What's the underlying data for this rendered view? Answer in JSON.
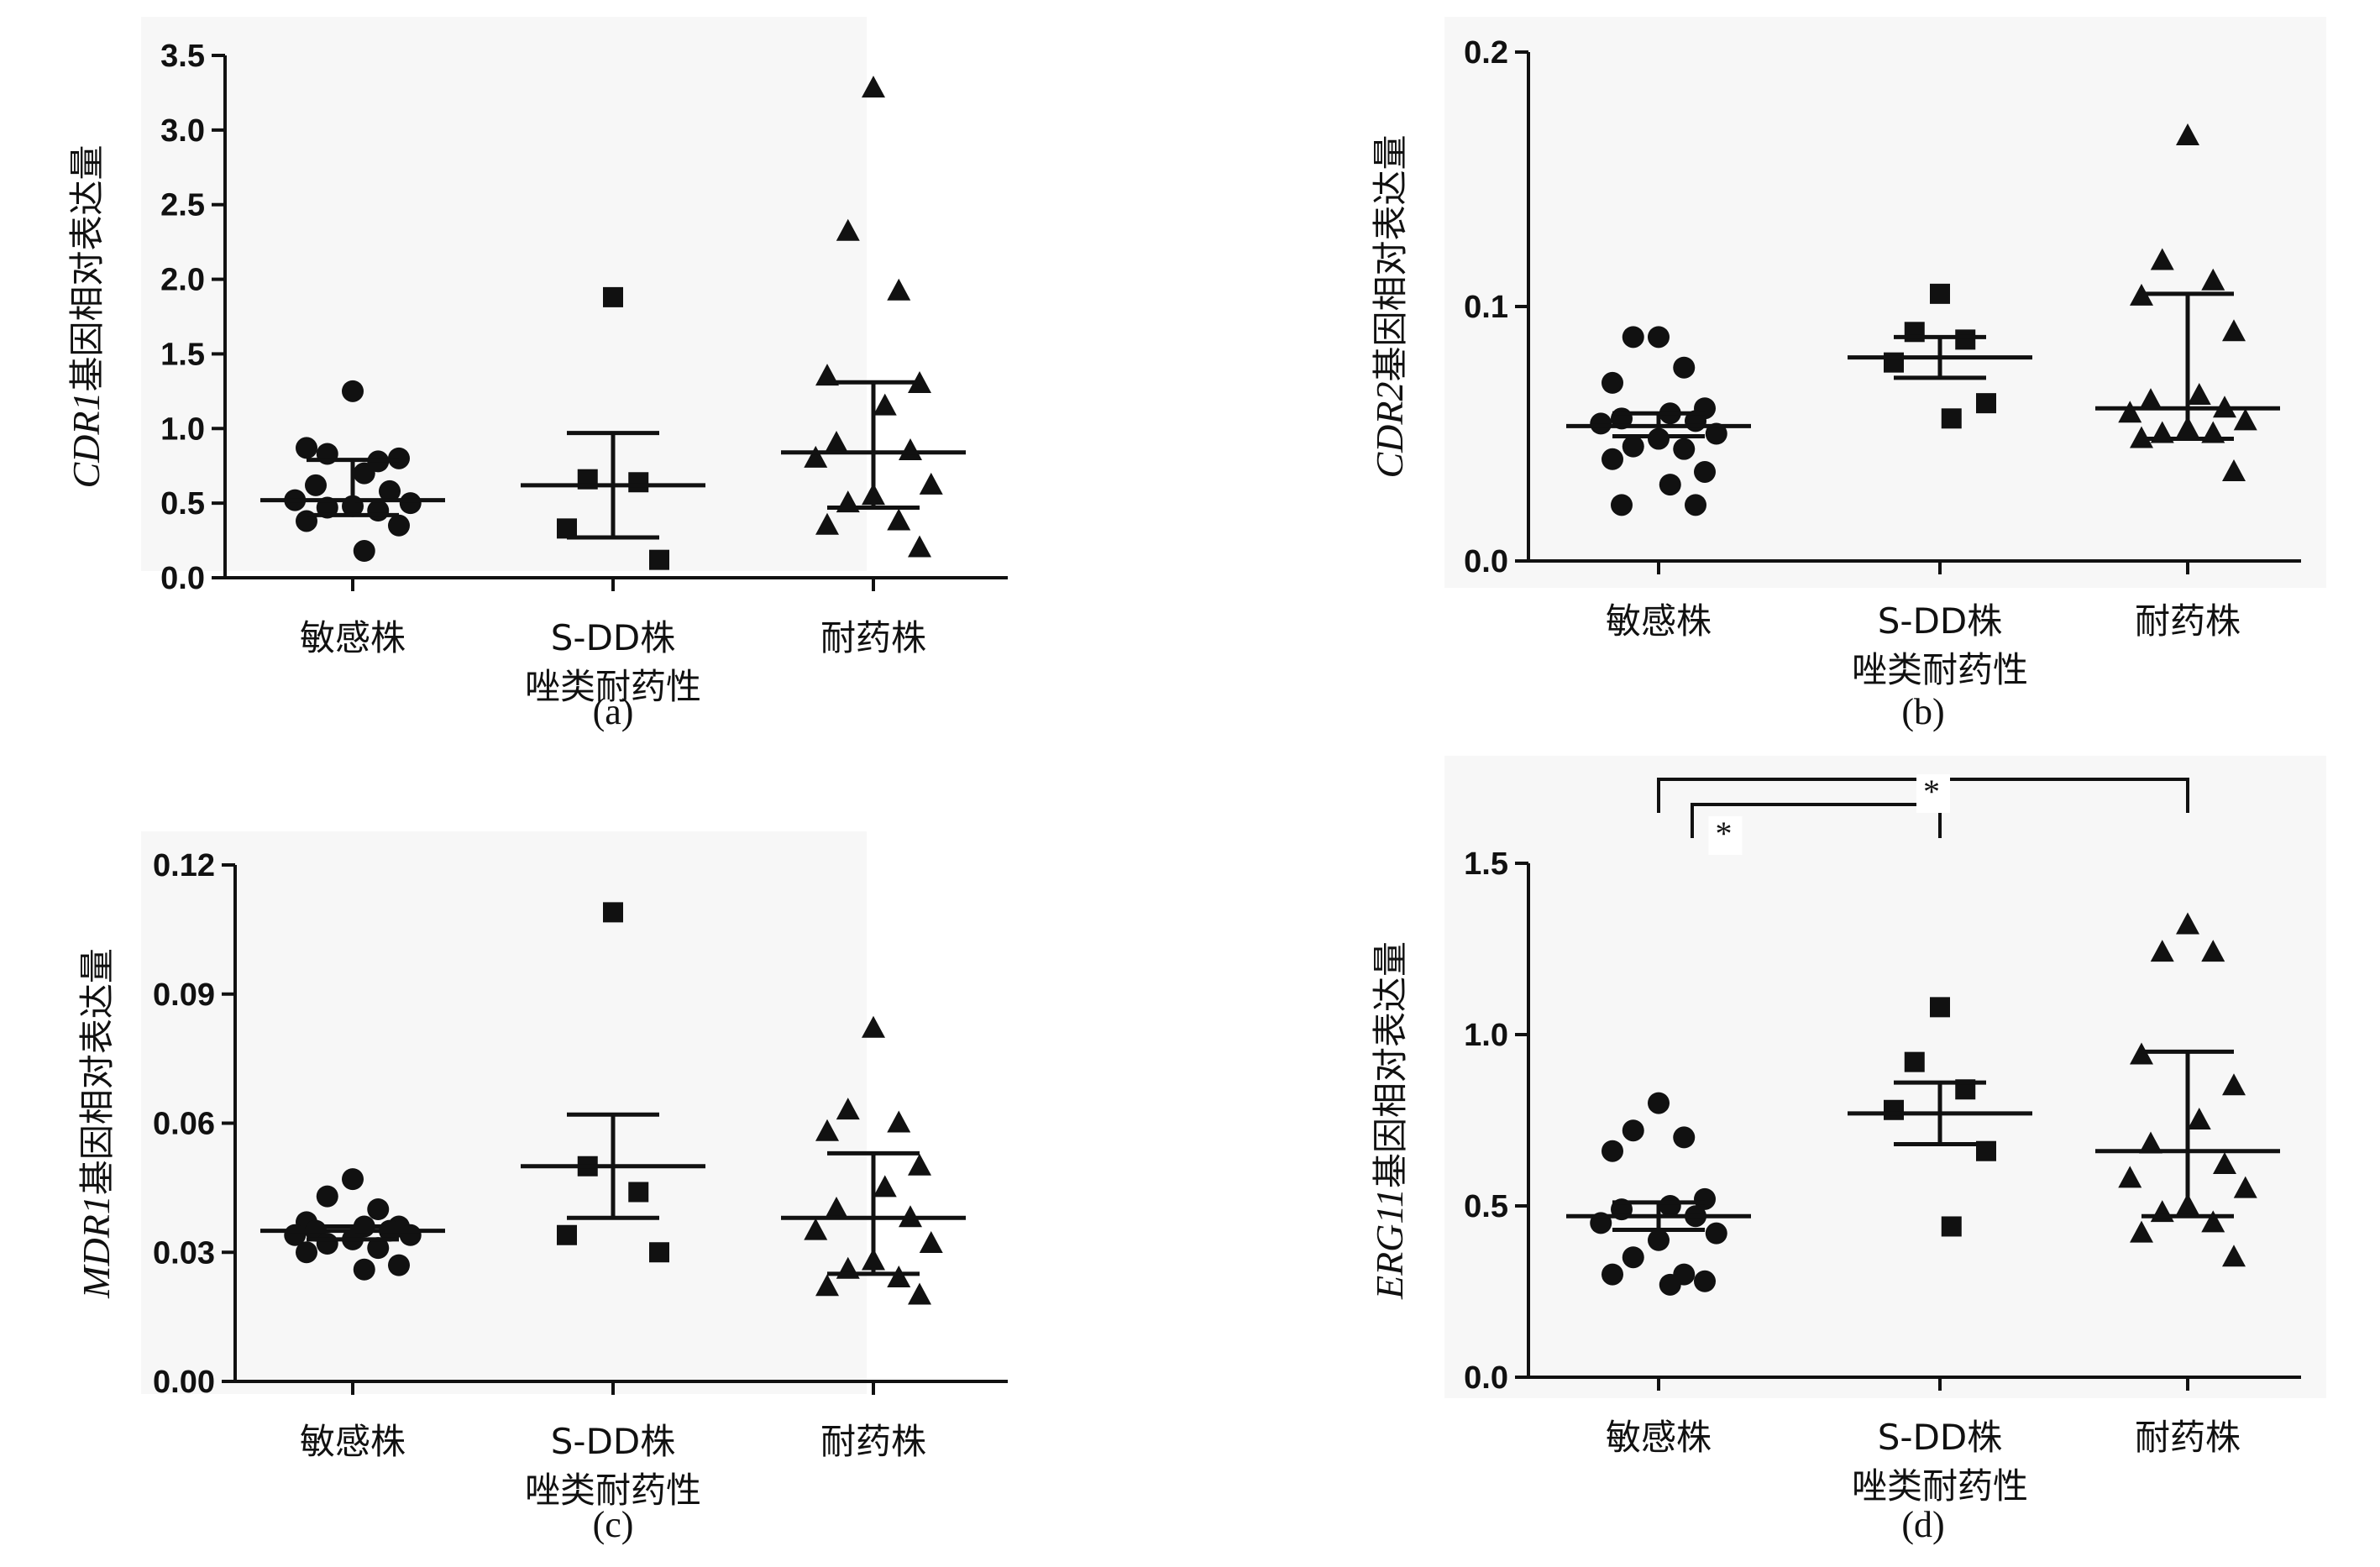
{
  "chart_data": [
    {
      "type": "scatter",
      "panel_label": "(a)",
      "ylabel": {
        "gene": "CDR1",
        "suffix": "基因相对表达量"
      },
      "ylim": [
        0,
        3.5
      ],
      "yticks": [
        "0.0",
        "0.5",
        "1.0",
        "1.5",
        "2.0",
        "2.5",
        "3.0",
        "3.5"
      ],
      "groups": [
        {
          "label": [
            "敏感株"
          ],
          "marker": "circle",
          "values": [
            1.25,
            0.83,
            0.78,
            0.87,
            0.8,
            0.7,
            0.62,
            0.58,
            0.52,
            0.5,
            0.48,
            0.47,
            0.45,
            0.38,
            0.35,
            0.18
          ],
          "center": 0.52,
          "err_low": 0.42,
          "err_high": 0.79
        },
        {
          "label": [
            "S-DD株",
            "唑类耐药性"
          ],
          "marker": "square",
          "values": [
            1.88,
            0.66,
            0.64,
            0.33,
            0.12
          ],
          "center": 0.62,
          "err_low": 0.27,
          "err_high": 0.97
        },
        {
          "label": [
            "耐药株"
          ],
          "marker": "triangle",
          "values": [
            3.28,
            2.32,
            1.92,
            1.35,
            1.3,
            1.15,
            0.9,
            0.85,
            0.8,
            0.62,
            0.55,
            0.5,
            0.38,
            0.35,
            0.2
          ],
          "center": 0.84,
          "err_low": 0.47,
          "err_high": 1.31
        }
      ]
    },
    {
      "type": "scatter",
      "panel_label": "(b)",
      "ylabel": {
        "gene": "CDR2",
        "suffix": "基因相对表达量"
      },
      "ylim": [
        0,
        0.2
      ],
      "yticks": [
        "0.0",
        "0.1",
        "0.2"
      ],
      "groups": [
        {
          "label": [
            "敏感株"
          ],
          "marker": "circle",
          "values": [
            0.088,
            0.088,
            0.076,
            0.07,
            0.06,
            0.058,
            0.056,
            0.055,
            0.054,
            0.05,
            0.048,
            0.045,
            0.044,
            0.04,
            0.035,
            0.03,
            0.022,
            0.022
          ],
          "center": 0.053,
          "err_low": 0.049,
          "err_high": 0.058
        },
        {
          "label": [
            "S-DD株",
            "唑类耐药性"
          ],
          "marker": "square",
          "values": [
            0.105,
            0.09,
            0.087,
            0.078,
            0.062,
            0.056
          ],
          "center": 0.08,
          "err_low": 0.072,
          "err_high": 0.088
        },
        {
          "label": [
            "耐药株"
          ],
          "marker": "triangle",
          "values": [
            0.167,
            0.118,
            0.11,
            0.104,
            0.09,
            0.065,
            0.063,
            0.06,
            0.058,
            0.055,
            0.052,
            0.05,
            0.05,
            0.048,
            0.035
          ],
          "center": 0.06,
          "err_low": 0.048,
          "err_high": 0.105
        }
      ]
    },
    {
      "type": "scatter",
      "panel_label": "(c)",
      "ylabel": {
        "gene": "MDR1",
        "suffix": "基因相对表达量"
      },
      "ylim": [
        0,
        0.12
      ],
      "yticks": [
        "0.00",
        "0.03",
        "0.06",
        "0.09",
        "0.12"
      ],
      "groups": [
        {
          "label": [
            "敏感株"
          ],
          "marker": "circle",
          "values": [
            0.047,
            0.043,
            0.04,
            0.037,
            0.036,
            0.036,
            0.035,
            0.035,
            0.034,
            0.034,
            0.033,
            0.032,
            0.031,
            0.03,
            0.027,
            0.026
          ],
          "center": 0.035,
          "err_low": 0.033,
          "err_high": 0.036
        },
        {
          "label": [
            "S-DD株",
            "唑类耐药性"
          ],
          "marker": "square",
          "values": [
            0.109,
            0.05,
            0.044,
            0.034,
            0.03
          ],
          "center": 0.05,
          "err_low": 0.038,
          "err_high": 0.062
        },
        {
          "label": [
            "耐药株"
          ],
          "marker": "triangle",
          "values": [
            0.082,
            0.063,
            0.06,
            0.058,
            0.05,
            0.045,
            0.04,
            0.038,
            0.035,
            0.032,
            0.028,
            0.026,
            0.024,
            0.022,
            0.02
          ],
          "center": 0.038,
          "err_low": 0.025,
          "err_high": 0.053
        }
      ]
    },
    {
      "type": "scatter",
      "panel_label": "(d)",
      "ylabel": {
        "gene": "ERG11",
        "suffix": "基因相对表达量"
      },
      "ylim": [
        0,
        1.5
      ],
      "yticks": [
        "0.0",
        "0.5",
        "1.0",
        "1.5"
      ],
      "significance": [
        {
          "from": 0,
          "to": 1,
          "label": "*"
        },
        {
          "from": 0,
          "to": 2,
          "label": "*"
        }
      ],
      "groups": [
        {
          "label": [
            "敏感株"
          ],
          "marker": "circle",
          "values": [
            0.8,
            0.72,
            0.7,
            0.66,
            0.52,
            0.5,
            0.49,
            0.47,
            0.45,
            0.42,
            0.4,
            0.35,
            0.3,
            0.3,
            0.28,
            0.27
          ],
          "center": 0.47,
          "err_low": 0.43,
          "err_high": 0.51
        },
        {
          "label": [
            "S-DD株",
            "唑类耐药性"
          ],
          "marker": "square",
          "values": [
            1.08,
            0.92,
            0.84,
            0.78,
            0.66,
            0.44
          ],
          "center": 0.77,
          "err_low": 0.68,
          "err_high": 0.86
        },
        {
          "label": [
            "耐药株"
          ],
          "marker": "triangle",
          "values": [
            1.32,
            1.24,
            1.24,
            0.94,
            0.85,
            0.75,
            0.68,
            0.62,
            0.58,
            0.55,
            0.5,
            0.48,
            0.45,
            0.42,
            0.35
          ],
          "center": 0.66,
          "err_low": 0.47,
          "err_high": 0.95
        }
      ]
    }
  ]
}
